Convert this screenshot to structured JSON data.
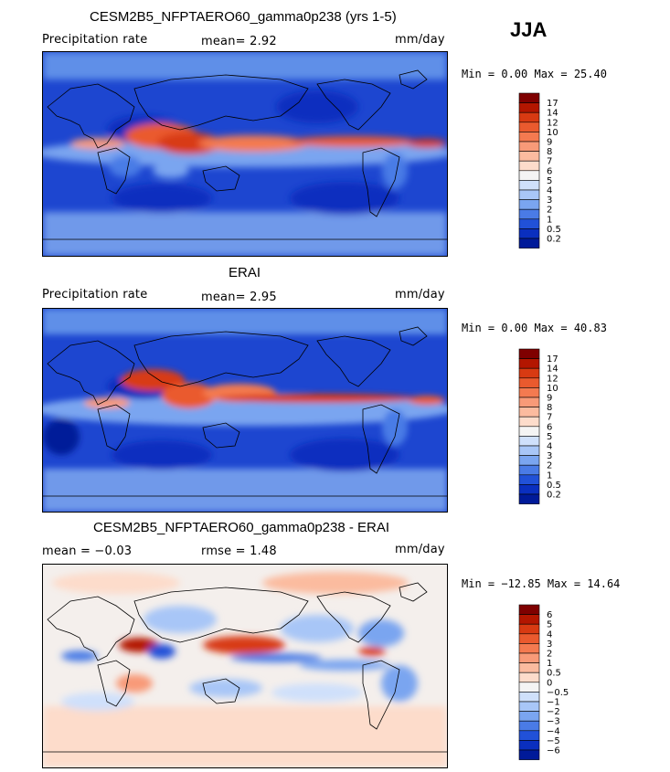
{
  "season": "JJA",
  "panels": [
    {
      "title": "CESM2B5_NFPTAERO60_gamma0p238 (yrs 1-5)",
      "left_label": "Precipitation rate",
      "center_label": "mean=   2.92",
      "units": "mm/day",
      "minmax": "Min =   0.00 Max =  25.40",
      "colorbar_labels": [
        "17",
        "14",
        "12",
        "10",
        "9",
        "8",
        "7",
        "6",
        "5",
        "4",
        "3",
        "2",
        "1",
        "0.5",
        "0.2"
      ],
      "colors": [
        "#7f0000",
        "#b31600",
        "#d83a12",
        "#ea5a2e",
        "#f47a50",
        "#f89a78",
        "#fbbb9f",
        "#fddccb",
        "#f4f4f4",
        "#cfe0fb",
        "#a8c6f7",
        "#7aa5f0",
        "#4a7be6",
        "#2151d8",
        "#0a2fbf",
        "#001a99"
      ]
    },
    {
      "title": "ERAI",
      "left_label": "Precipitation rate",
      "center_label": "mean=   2.95",
      "units": "mm/day",
      "minmax": "Min =   0.00 Max =  40.83",
      "colorbar_labels": [
        "17",
        "14",
        "12",
        "10",
        "9",
        "8",
        "7",
        "6",
        "5",
        "4",
        "3",
        "2",
        "1",
        "0.5",
        "0.2"
      ],
      "colors": [
        "#7f0000",
        "#b31600",
        "#d83a12",
        "#ea5a2e",
        "#f47a50",
        "#f89a78",
        "#fbbb9f",
        "#fddccb",
        "#f4f4f4",
        "#cfe0fb",
        "#a8c6f7",
        "#7aa5f0",
        "#4a7be6",
        "#2151d8",
        "#0a2fbf",
        "#001a99"
      ]
    },
    {
      "title": "CESM2B5_NFPTAERO60_gamma0p238 - ERAI",
      "left_label": "mean =  −0.03",
      "center_label": "rmse =    1.48",
      "units": "mm/day",
      "minmax": "Min = −12.85 Max =  14.64",
      "colorbar_labels": [
        "6",
        "5",
        "4",
        "3",
        "2",
        "1",
        "0.5",
        "0",
        "−0.5",
        "−1",
        "−2",
        "−3",
        "−4",
        "−5",
        "−6"
      ],
      "colors": [
        "#7f0000",
        "#b31600",
        "#d83a12",
        "#ea5a2e",
        "#f47a50",
        "#f89a78",
        "#fbbb9f",
        "#fddccb",
        "#f4f4f4",
        "#cfe0fb",
        "#a8c6f7",
        "#7aa5f0",
        "#4a7be6",
        "#2151d8",
        "#0a2fbf",
        "#001a99"
      ]
    }
  ]
}
